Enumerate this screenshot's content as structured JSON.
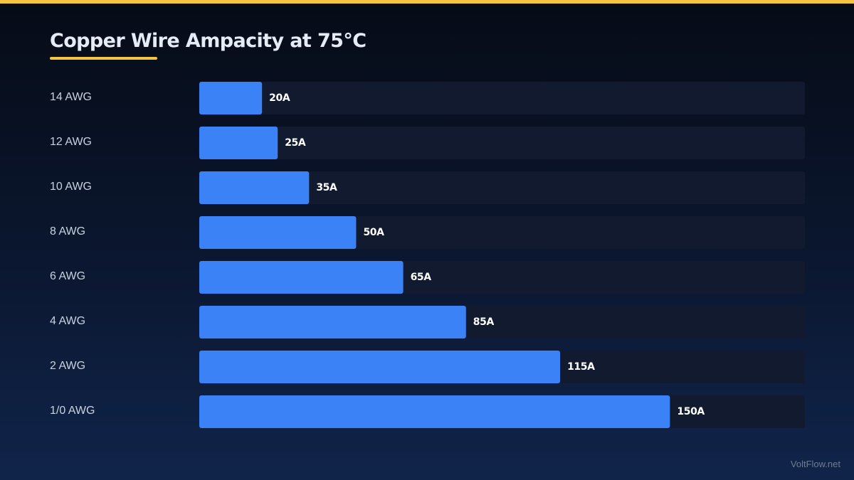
{
  "page": {
    "title": "Copper Wire Ampacity at 75°C",
    "watermark": "VoltFlow.net"
  },
  "colors": {
    "accent": "#f5c542",
    "bar": "#3b82f6",
    "track": "#111a2e"
  },
  "chart_data": {
    "type": "bar",
    "orientation": "horizontal",
    "title": "Copper Wire Ampacity at 75°C",
    "xlabel": "",
    "ylabel": "",
    "xlim": [
      0,
      193
    ],
    "grid": false,
    "legend": "none",
    "unit_suffix": "A",
    "categories": [
      "14 AWG",
      "12 AWG",
      "10 AWG",
      "8 AWG",
      "6 AWG",
      "4 AWG",
      "2 AWG",
      "1/0 AWG"
    ],
    "values": [
      20,
      25,
      35,
      50,
      65,
      85,
      115,
      150
    ],
    "value_labels": [
      "20A",
      "25A",
      "35A",
      "50A",
      "65A",
      "85A",
      "115A",
      "150A"
    ]
  }
}
